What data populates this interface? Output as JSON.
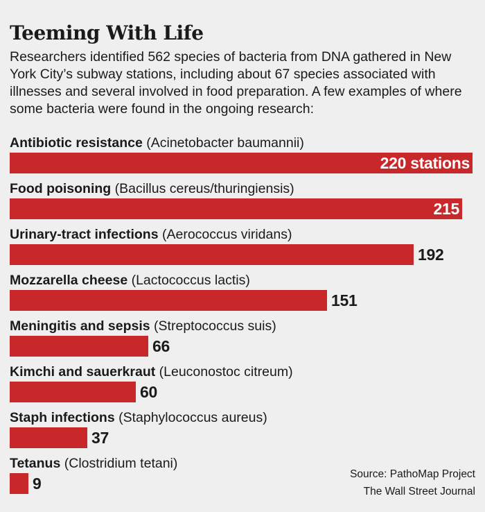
{
  "title": "Teeming With Life",
  "subtitle": "Researchers identified 562 species of bacteria from DNA gathered in New York City’s subway stations, including about 67 species associated with illnesses and several involved in food preparation. A few examples of where some bacteria were found in the ongoing research:",
  "source_line1": "Source: PathoMap Project",
  "source_line2": "The Wall Street Journal",
  "colors": {
    "bar": "#c9282b",
    "background": "#efefef"
  },
  "chart_data": {
    "type": "bar",
    "orientation": "horizontal",
    "title": "Teeming With Life",
    "categories": [
      "Antibiotic resistance",
      "Food poisoning",
      "Urinary-tract infections",
      "Mozzarella cheese",
      "Meningitis and sepsis",
      "Kimchi and sauerkraut",
      "Staph infections",
      "Tetanus"
    ],
    "species": [
      "(Acinetobacter baumannii)",
      "(Bacillus cereus/thuringiensis)",
      "(Aerococcus viridans)",
      "(Lactococcus lactis)",
      "(Streptococcus suis)",
      "(Leuconostoc citreum)",
      "(Staphylococcus aureus)",
      "(Clostridium tetani)"
    ],
    "values": [
      220,
      215,
      192,
      151,
      66,
      60,
      37,
      9
    ],
    "value_labels": [
      "220 stations",
      "215",
      "192",
      "151",
      "66",
      "60",
      "37",
      "9"
    ],
    "xlim": [
      0,
      220
    ],
    "grid": false,
    "legend": "none"
  }
}
